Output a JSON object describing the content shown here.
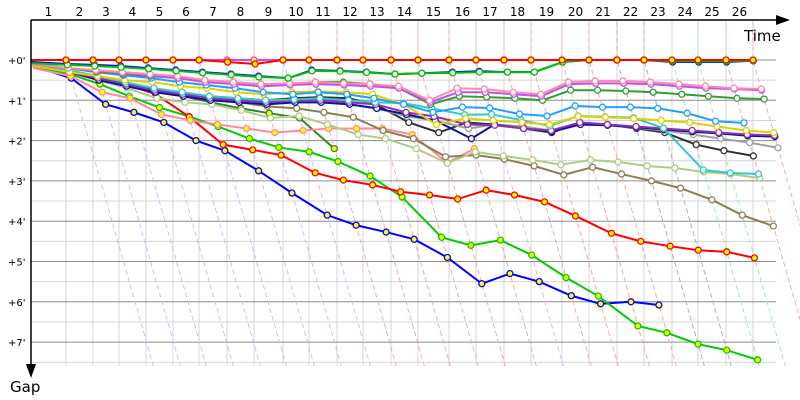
{
  "chart_data": {
    "type": "line",
    "title": "",
    "xlabel": "Time",
    "ylabel": "Gap",
    "x_tick_labels": [
      "1",
      "2",
      "3",
      "4",
      "5",
      "6",
      "7",
      "8",
      "9",
      "10",
      "11",
      "12",
      "13",
      "14",
      "15",
      "16",
      "17",
      "18",
      "19",
      "20",
      "21",
      "22",
      "23",
      "24",
      "25",
      "26"
    ],
    "y_tick_labels": [
      "+0'",
      "+1'",
      "+2'",
      "+3'",
      "+4'",
      "+5'",
      "+6'",
      "+7'"
    ],
    "y_unit": "minutes",
    "ylim": [
      0,
      7.8
    ],
    "grid": true,
    "legend": "none",
    "lap_marker_colors": [
      "#e3b4f5",
      "#e3b4f5",
      "#e3b4f5",
      "#e3b4f5",
      "#e3b4f5",
      "#e3b4f5",
      "#e3b4f5",
      "#e3b4f5",
      "#e3b4f5",
      "#f5a8a8",
      "#f5a8a8",
      "#f5a8a8",
      "#f5a8a8",
      "#f5a8a8",
      "#f5a8a8",
      "#e3b4f5",
      "#f5a8a8",
      "#f5a8a8",
      "#f5a8a8",
      "#f5a8a8",
      "#a8a8f5",
      "#a8a8f5",
      "#a8e8a8",
      "#a8e8a8",
      "#f5a8a8",
      "#f5a8a8"
    ],
    "series": [
      {
        "color": "#ff0000",
        "marker_fill": "#ffff00",
        "values": [
          0,
          0,
          0,
          0,
          0,
          0,
          0,
          0.05,
          0.1,
          0,
          0,
          0,
          0,
          0,
          0,
          0,
          0,
          0,
          0,
          0,
          0,
          0,
          0,
          0,
          0,
          0,
          0
        ]
      },
      {
        "color": "#e040e0",
        "marker_fill": "#ffff00",
        "values": [
          0,
          0,
          0,
          0,
          0,
          0,
          0,
          0,
          0,
          0,
          0,
          0,
          0,
          0,
          0,
          0,
          0,
          0,
          0
        ]
      },
      {
        "color": "#00c000",
        "marker_fill": "#ffffff",
        "values": [
          0.08,
          0.12,
          0.15,
          0.18,
          0.22,
          0.27,
          0.32,
          0.37,
          0.42,
          0.45,
          0.27,
          0.28,
          0.31,
          0.35,
          0.33,
          0.32,
          0.3,
          0.3,
          0.3,
          0.05,
          0,
          0,
          0,
          0.03,
          0.03,
          0.03,
          0.02
        ]
      },
      {
        "color": "#0000ff",
        "marker_fill": "#ffffff",
        "values": [
          0.05,
          0.1,
          0.12,
          0.15,
          0.2,
          0.25,
          0.3,
          0.35,
          0.4,
          0.45,
          0.25,
          0.27,
          0.3,
          0.35,
          0.33,
          0.3,
          0.28,
          0.3,
          0.3,
          0.05,
          0,
          0,
          0,
          0.05,
          0.05,
          0.05,
          0.02
        ]
      },
      {
        "color": "#ff88b0",
        "marker_fill": "#ffffff",
        "values": [
          0.1,
          0.2,
          0.25,
          0.3,
          0.35,
          0.4,
          0.5,
          0.55,
          0.6,
          0.58,
          0.55,
          0.58,
          0.6,
          0.65,
          1.0,
          0.7,
          0.72,
          0.8,
          0.85,
          0.55,
          0.52,
          0.52,
          0.55,
          0.6,
          0.65,
          0.7,
          0.72
        ]
      },
      {
        "color": "#c050f0",
        "marker_fill": "#ffffff",
        "values": [
          0.1,
          0.2,
          0.27,
          0.33,
          0.38,
          0.45,
          0.55,
          0.6,
          0.65,
          0.62,
          0.6,
          0.62,
          0.65,
          0.7,
          1.05,
          0.8,
          0.8,
          0.85,
          0.9,
          0.6,
          0.58,
          0.58,
          0.6,
          0.65,
          0.7,
          0.72,
          0.75
        ]
      },
      {
        "color": "#30a030",
        "marker_fill": "#ffffff",
        "values": [
          0.1,
          0.2,
          0.3,
          0.35,
          0.4,
          0.45,
          0.5,
          0.55,
          0.6,
          0.6,
          0.55,
          0.55,
          0.6,
          0.7,
          1.1,
          0.9,
          0.92,
          0.95,
          1.0,
          0.75,
          0.75,
          0.77,
          0.8,
          0.85,
          0.9,
          0.95,
          0.97
        ]
      },
      {
        "color": "#1ea0ff",
        "marker_fill": "#ffffff",
        "values": [
          0.1,
          0.2,
          0.3,
          0.38,
          0.45,
          0.55,
          0.62,
          0.7,
          0.8,
          0.85,
          0.8,
          0.85,
          0.95,
          1.1,
          1.3,
          1.17,
          1.19,
          1.34,
          1.39,
          1.14,
          1.17,
          1.17,
          1.2,
          1.32,
          1.52,
          1.56
        ]
      },
      {
        "color": "#e0d000",
        "marker_fill": "#ffffff",
        "values": [
          0.15,
          0.3,
          0.4,
          0.5,
          0.55,
          0.65,
          0.7,
          0.8,
          0.85,
          0.8,
          0.78,
          0.8,
          0.85,
          1.1,
          1.6,
          1.45,
          1.5,
          1.55,
          1.6,
          1.4,
          1.42,
          1.45,
          1.5,
          1.55,
          1.65,
          1.75,
          1.8
        ]
      },
      {
        "color": "#30c8c8",
        "marker_fill": "#ffffff",
        "values": [
          0.1,
          0.25,
          0.4,
          0.55,
          0.7,
          0.8,
          0.9,
          0.95,
          1.0,
          0.98,
          0.95,
          1.0,
          1.05,
          1.07,
          1.2,
          1.36,
          1.35,
          1.49,
          1.64,
          1.39,
          1.41,
          1.43,
          1.69,
          2.73,
          2.8,
          2.83
        ]
      },
      {
        "color": "#9030b0",
        "marker_fill": "#ffffff",
        "values": [
          0.15,
          0.3,
          0.45,
          0.6,
          0.75,
          0.85,
          0.95,
          1.0,
          1.05,
          1.0,
          1.0,
          1.05,
          1.1,
          1.3,
          1.4,
          1.6,
          1.62,
          1.7,
          1.75,
          1.55,
          1.6,
          1.65,
          1.7,
          1.75,
          1.8,
          1.85,
          1.87
        ]
      },
      {
        "color": "#1010a0",
        "marker_fill": "#ffffff",
        "values": [
          0.15,
          0.3,
          0.5,
          0.65,
          0.8,
          0.9,
          1.0,
          1.05,
          1.1,
          1.05,
          1.05,
          1.1,
          1.2,
          1.35,
          1.5,
          1.95,
          1.6,
          1.7,
          1.78,
          1.6,
          1.62,
          1.67,
          1.72,
          1.78,
          1.82,
          1.88,
          1.9
        ]
      },
      {
        "color": "#a0a0a0",
        "marker_fill": "#ffffff",
        "values": [
          0.15,
          0.3,
          0.45,
          0.6,
          0.75,
          0.85,
          0.95,
          1.0,
          1.05,
          1.05,
          1.05,
          1.1,
          1.2,
          1.4,
          1.5,
          1.7,
          1.6,
          1.65,
          1.75,
          1.6,
          1.62,
          1.68,
          1.75,
          1.85,
          1.95,
          2.05,
          2.18
        ]
      },
      {
        "color": "#303030",
        "marker_fill": "#ffffff",
        "values": [
          0.15,
          0.3,
          0.45,
          0.6,
          0.75,
          0.85,
          0.9,
          0.95,
          1.0,
          0.95,
          0.92,
          0.95,
          1.1,
          1.55,
          1.8,
          1.55,
          1.6,
          1.7,
          1.8,
          1.55,
          1.6,
          1.7,
          1.8,
          2.1,
          2.25,
          2.38
        ]
      },
      {
        "color": "#b0cc80",
        "marker_fill": "#ffffff",
        "values": [
          0.15,
          0.3,
          0.5,
          0.7,
          0.95,
          1.05,
          1.1,
          1.25,
          1.44,
          1.39,
          1.6,
          1.85,
          1.95,
          2.2,
          2.56,
          2.28,
          2.38,
          2.48,
          2.6,
          2.48,
          2.53,
          2.63,
          2.68,
          2.78,
          2.83,
          2.93
        ]
      },
      {
        "color": "#888050",
        "marker_fill": "#ffffff",
        "values": [
          0.15,
          0.3,
          0.45,
          0.6,
          0.75,
          0.85,
          0.95,
          1.05,
          1.15,
          1.2,
          1.3,
          1.42,
          1.75,
          1.95,
          2.4,
          2.36,
          2.46,
          2.63,
          2.85,
          2.66,
          2.83,
          3.0,
          3.18,
          3.47,
          3.85,
          4.12
        ]
      },
      {
        "color": "#ff8aa0",
        "marker_fill": "#ffff00",
        "values": [
          0.2,
          0.4,
          0.8,
          0.95,
          1.35,
          1.5,
          1.6,
          1.7,
          1.8,
          1.75,
          1.7,
          1.7,
          1.7,
          1.85,
          2.55,
          2.2
        ]
      },
      {
        "color": "#2a8a2a",
        "marker_fill": "#ffff00",
        "values": [
          0.15,
          0.3,
          0.45,
          0.6,
          0.75,
          0.9,
          1.05,
          1.2,
          1.32,
          1.44,
          2.2
        ]
      },
      {
        "color": "#ff0000",
        "marker_fill": "#ffff00",
        "values": [
          0.15,
          0.3,
          0.45,
          0.6,
          0.85,
          1.41,
          2.1,
          2.23,
          2.36,
          2.8,
          2.98,
          3.1,
          3.27,
          3.35,
          3.45,
          3.23,
          3.35,
          3.52,
          3.87,
          4.3,
          4.5,
          4.62,
          4.72,
          4.76,
          4.91
        ]
      },
      {
        "color": "#00cc00",
        "marker_fill": "#ffff00",
        "values": [
          0.2,
          0.35,
          0.6,
          0.9,
          1.18,
          1.4,
          1.65,
          1.95,
          2.17,
          2.28,
          2.52,
          2.88,
          3.4,
          4.4,
          4.6,
          4.47,
          4.84,
          5.4,
          5.86,
          6.6,
          6.77,
          7.05,
          7.2,
          7.44
        ]
      },
      {
        "color": "#0000ff",
        "marker_fill": "#ffff00",
        "values": [
          0.15,
          0.45,
          1.1,
          1.3,
          1.55,
          2.0,
          2.25,
          2.75,
          3.3,
          3.85,
          4.1,
          4.27,
          4.45,
          4.9,
          5.55,
          5.3,
          5.5,
          5.85,
          6.05,
          6.0,
          6.08
        ]
      }
    ]
  }
}
